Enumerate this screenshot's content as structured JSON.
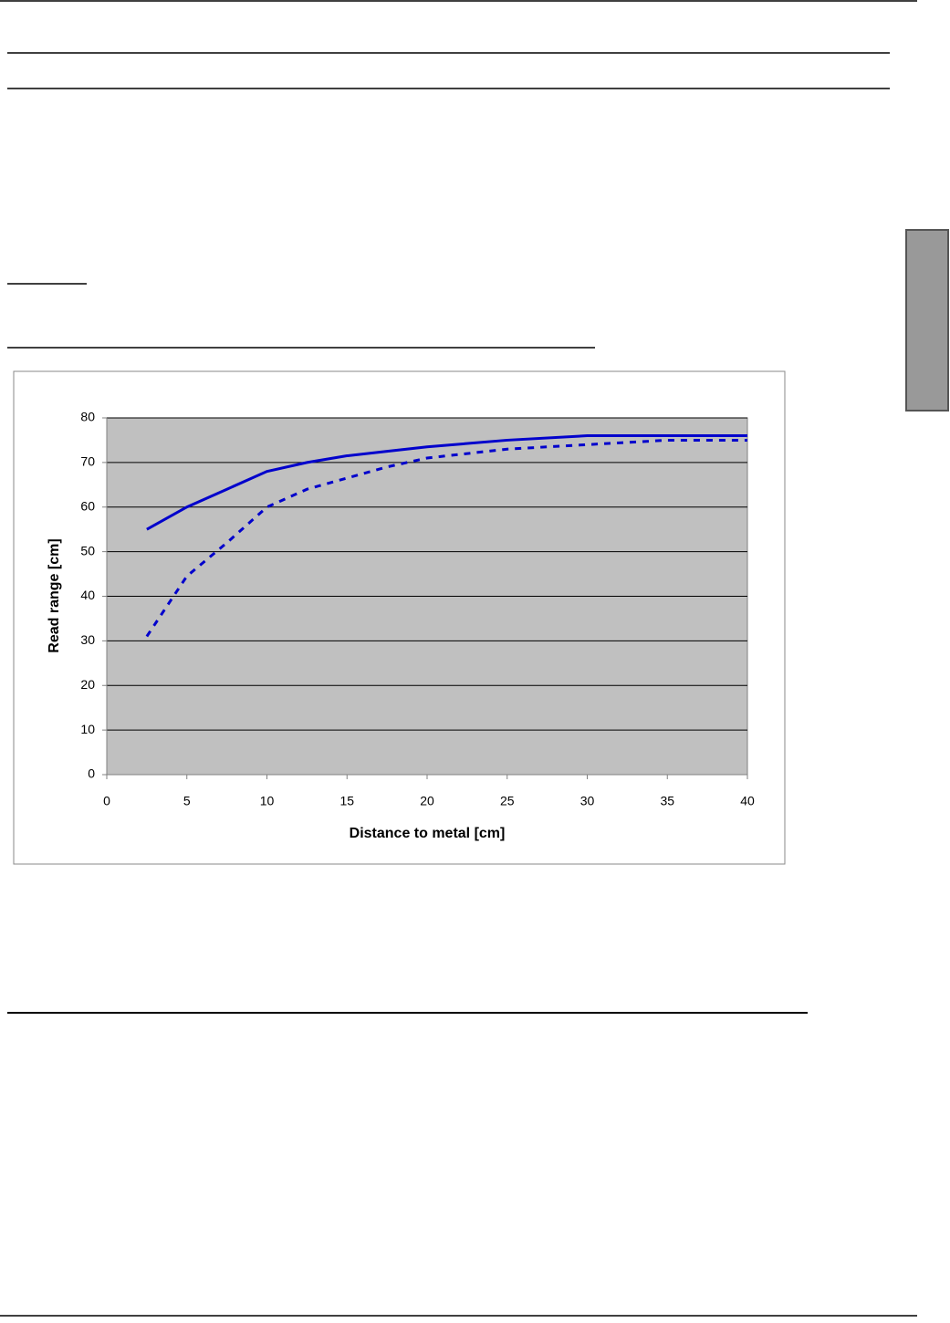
{
  "chart_data": {
    "type": "line",
    "xlabel": "Distance to metal [cm]",
    "ylabel": "Read range [cm]",
    "x": [
      2.5,
      5,
      7.5,
      10,
      12.5,
      15,
      17.5,
      20,
      25,
      30,
      35,
      40
    ],
    "series": [
      {
        "color": "#0000cc",
        "dashed": false,
        "values": [
          55,
          60,
          64,
          68,
          70,
          71.5,
          72.5,
          73.5,
          75,
          76,
          76,
          76
        ]
      },
      {
        "color": "#0000cc",
        "dashed": true,
        "values": [
          31,
          44.5,
          52,
          60,
          64,
          66.5,
          69,
          71,
          73,
          74,
          75,
          75
        ]
      }
    ],
    "xlim": [
      0,
      40
    ],
    "xticks": [
      0,
      5,
      10,
      15,
      20,
      25,
      30,
      35,
      40
    ],
    "ylim": [
      0,
      80
    ],
    "yticks": [
      0,
      10,
      20,
      30,
      40,
      50,
      60,
      70,
      80
    ],
    "grid": true,
    "plot_background": "#c0c0c0"
  }
}
